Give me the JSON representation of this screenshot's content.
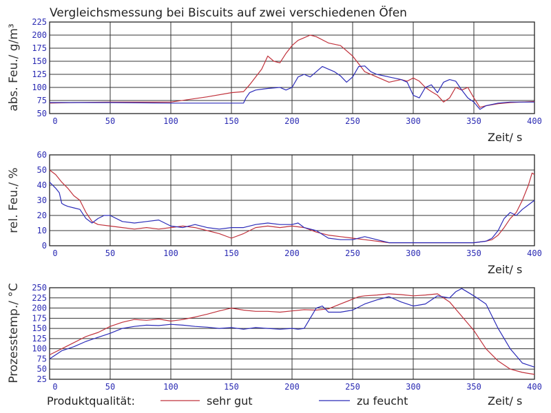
{
  "title": "Vergleichsmessung bei Biscuits auf zwei verschiedenen Öfen",
  "legend": {
    "label": "Produktqualität:",
    "entries": [
      {
        "name": "sehr gut",
        "color": "#c0303a"
      },
      {
        "name": "zu feucht",
        "color": "#2a2ab8"
      }
    ]
  },
  "colors": {
    "grid": "#333333",
    "tick_text": "#2b2bb3",
    "series_good": "#c0303a",
    "series_wet": "#2a2ab8"
  },
  "chart_data": [
    {
      "type": "line",
      "xlabel": "Zeit/ s",
      "ylabel": "abs. Feu./ g/m³",
      "xlim": [
        0,
        400
      ],
      "ylim": [
        50,
        225
      ],
      "xticks": [
        "0",
        "50",
        "100",
        "150",
        "200",
        "250",
        "300",
        "350",
        "400"
      ],
      "yticks": [
        "50",
        "75",
        "100",
        "125",
        "150",
        "175",
        "200",
        "225"
      ],
      "grid": true,
      "series": [
        {
          "name": "sehr gut",
          "x": [
            0,
            20,
            50,
            100,
            130,
            150,
            160,
            165,
            175,
            180,
            185,
            190,
            195,
            200,
            205,
            210,
            215,
            220,
            230,
            240,
            250,
            255,
            260,
            270,
            280,
            290,
            295,
            300,
            305,
            310,
            315,
            320,
            325,
            330,
            335,
            340,
            345,
            350,
            355,
            360,
            370,
            380,
            400
          ],
          "y": [
            70,
            71,
            72,
            72,
            82,
            90,
            92,
            105,
            135,
            160,
            150,
            147,
            165,
            180,
            190,
            195,
            200,
            197,
            185,
            180,
            160,
            145,
            130,
            120,
            110,
            115,
            112,
            118,
            112,
            100,
            92,
            85,
            72,
            80,
            100,
            95,
            100,
            80,
            62,
            65,
            69,
            71,
            73
          ]
        },
        {
          "name": "zu feucht",
          "x": [
            0,
            50,
            100,
            150,
            160,
            162,
            165,
            170,
            180,
            190,
            195,
            200,
            205,
            210,
            215,
            220,
            225,
            230,
            235,
            240,
            245,
            250,
            255,
            260,
            265,
            270,
            280,
            290,
            295,
            300,
            305,
            310,
            315,
            320,
            325,
            330,
            335,
            340,
            345,
            350,
            355,
            360,
            370,
            380,
            400
          ],
          "y": [
            71,
            71,
            70,
            70,
            70,
            80,
            90,
            95,
            98,
            100,
            95,
            100,
            120,
            125,
            120,
            130,
            140,
            135,
            130,
            122,
            110,
            120,
            140,
            141,
            130,
            125,
            120,
            115,
            110,
            85,
            80,
            100,
            105,
            90,
            110,
            115,
            112,
            95,
            80,
            72,
            58,
            65,
            70,
            72,
            72
          ]
        }
      ]
    },
    {
      "type": "line",
      "xlabel": "Zeit/ s",
      "ylabel": "rel. Feu./ %",
      "xlim": [
        0,
        400
      ],
      "ylim": [
        0,
        60
      ],
      "xticks": [
        "0",
        "50",
        "100",
        "150",
        "200",
        "250",
        "300",
        "350",
        "400"
      ],
      "yticks": [
        "0",
        "10",
        "20",
        "30",
        "40",
        "50",
        "60"
      ],
      "grid": true,
      "series": [
        {
          "name": "sehr gut",
          "x": [
            0,
            5,
            10,
            15,
            20,
            25,
            30,
            35,
            40,
            50,
            60,
            70,
            80,
            90,
            100,
            110,
            120,
            130,
            140,
            150,
            160,
            170,
            180,
            190,
            200,
            210,
            220,
            230,
            240,
            250,
            260,
            280,
            300,
            320,
            340,
            350,
            360,
            365,
            370,
            375,
            380,
            385,
            390,
            395,
            398,
            400
          ],
          "y": [
            50,
            47,
            42,
            38,
            33,
            30,
            22,
            16,
            14,
            13,
            12,
            11,
            12,
            11,
            12,
            13,
            12,
            10,
            8,
            5,
            8,
            12,
            13,
            12,
            13,
            12,
            9,
            7,
            6,
            5,
            4,
            2,
            2,
            2,
            2,
            2,
            3,
            4,
            7,
            12,
            18,
            22,
            30,
            40,
            48,
            47
          ]
        },
        {
          "name": "zu feucht",
          "x": [
            0,
            5,
            8,
            10,
            12,
            15,
            20,
            25,
            30,
            35,
            40,
            45,
            50,
            60,
            70,
            80,
            90,
            100,
            110,
            120,
            130,
            140,
            150,
            160,
            170,
            180,
            190,
            200,
            205,
            210,
            220,
            230,
            240,
            250,
            260,
            270,
            280,
            300,
            320,
            340,
            350,
            360,
            365,
            370,
            375,
            380,
            385,
            390,
            395,
            400
          ],
          "y": [
            42,
            38,
            35,
            28,
            27,
            26,
            25,
            24,
            18,
            15,
            18,
            20,
            20,
            16,
            15,
            16,
            17,
            13,
            12,
            14,
            12,
            11,
            12,
            12,
            14,
            15,
            14,
            14,
            15,
            12,
            10,
            5,
            4,
            4,
            6,
            4,
            2,
            2,
            2,
            2,
            2,
            3,
            5,
            10,
            18,
            22,
            20,
            24,
            27,
            30
          ]
        }
      ]
    },
    {
      "type": "line",
      "xlabel": "Zeit/ s",
      "ylabel": "Prozesstemp./ °C",
      "xlim": [
        0,
        400
      ],
      "ylim": [
        25,
        250
      ],
      "xticks": [
        "0",
        "50",
        "100",
        "150",
        "200",
        "250",
        "300",
        "350",
        "400"
      ],
      "yticks": [
        "25",
        "50",
        "75",
        "100",
        "125",
        "150",
        "175",
        "200",
        "225",
        "250"
      ],
      "grid": true,
      "series": [
        {
          "name": "sehr gut",
          "x": [
            0,
            10,
            20,
            30,
            40,
            50,
            60,
            70,
            80,
            90,
            100,
            110,
            120,
            130,
            140,
            150,
            160,
            170,
            180,
            190,
            200,
            210,
            220,
            230,
            240,
            250,
            255,
            260,
            270,
            280,
            290,
            300,
            310,
            320,
            330,
            340,
            350,
            360,
            370,
            380,
            390,
            400
          ],
          "y": [
            85,
            100,
            115,
            130,
            140,
            155,
            165,
            172,
            170,
            173,
            168,
            172,
            178,
            185,
            193,
            200,
            195,
            192,
            192,
            190,
            193,
            196,
            195,
            198,
            210,
            222,
            228,
            230,
            232,
            235,
            233,
            230,
            232,
            235,
            215,
            180,
            145,
            100,
            70,
            50,
            42,
            37
          ]
        },
        {
          "name": "zu feucht",
          "x": [
            0,
            10,
            20,
            30,
            40,
            50,
            60,
            70,
            80,
            90,
            100,
            110,
            120,
            130,
            140,
            150,
            160,
            170,
            180,
            190,
            200,
            205,
            210,
            220,
            225,
            230,
            240,
            250,
            260,
            270,
            280,
            290,
            300,
            310,
            320,
            330,
            335,
            340,
            350,
            360,
            370,
            380,
            390,
            400
          ],
          "y": [
            75,
            95,
            105,
            118,
            128,
            138,
            150,
            155,
            158,
            157,
            160,
            158,
            155,
            153,
            150,
            152,
            148,
            152,
            150,
            148,
            150,
            148,
            150,
            200,
            205,
            190,
            190,
            195,
            210,
            220,
            228,
            215,
            205,
            210,
            230,
            225,
            240,
            248,
            230,
            210,
            150,
            100,
            65,
            55
          ]
        }
      ]
    }
  ]
}
